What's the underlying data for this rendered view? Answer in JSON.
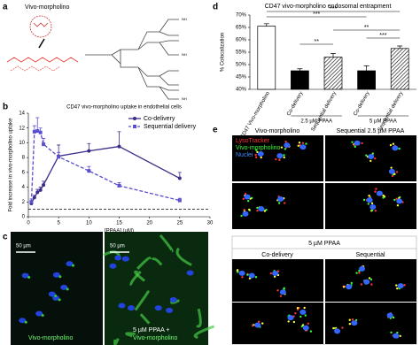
{
  "panel_labels": [
    "a",
    "b",
    "c",
    "d",
    "e"
  ],
  "panel_a": {
    "title": "Vivo-morpholino"
  },
  "chart_data": [
    {
      "type": "line",
      "title": "CD47 vivo-morpholino uptake in endothelial cells",
      "xlabel": "[PPAA] (µM)",
      "ylabel": "Fold increase in vivo-morpholino uptake",
      "x": [
        0.5,
        1,
        1.5,
        2,
        2.5,
        5,
        10,
        15,
        25
      ],
      "series": [
        {
          "name": "Co-delivery",
          "color": "#3b2a8a",
          "dash": false,
          "marker": "circle",
          "values": [
            1.8,
            2.6,
            3.3,
            3.6,
            4.3,
            8.2,
            8.9,
            9.5,
            5.2
          ],
          "errors": [
            0.3,
            0.3,
            0.4,
            0.4,
            0.5,
            1.5,
            1.0,
            2.0,
            0.8
          ]
        },
        {
          "name": "Sequential delivery",
          "color": "#5a4fcf",
          "dash": true,
          "marker": "square",
          "values": [
            2.0,
            11.5,
            11.6,
            11.4,
            9.8,
            8.1,
            6.2,
            4.2,
            2.2
          ],
          "errors": [
            0.4,
            0.8,
            1.8,
            0.6,
            0.8,
            0.6,
            0.6,
            0.4,
            0.3
          ]
        }
      ],
      "reference_line": 1,
      "xlim": [
        0,
        30
      ],
      "xticks": [
        0,
        5,
        10,
        15,
        20,
        25,
        30
      ],
      "ylim": [
        0,
        14
      ],
      "yticks": [
        0,
        2,
        4,
        6,
        8,
        10,
        12,
        14
      ],
      "legend": "top-right"
    },
    {
      "type": "bar",
      "title": "CD47 vivo-morpholino endosomal entrapment",
      "ylabel": "% Colocalization",
      "categories": [
        "CD47 Vivo-morpholino",
        "Co-delivery",
        "Sequential delivery",
        "Co-delivery",
        "Sequential delivery"
      ],
      "values": [
        65.5,
        47.5,
        53,
        47.5,
        56.5
      ],
      "errors": [
        1.0,
        0.8,
        1.5,
        2.0,
        1.0
      ],
      "bar_styles": [
        "open",
        "solid",
        "hatched",
        "solid",
        "hatched"
      ],
      "group_labels": [
        "2.5 µM PPAA",
        "5 µM PPAA"
      ],
      "significance_labels": [
        "***",
        "**",
        "**",
        "***",
        "***"
      ],
      "ylim": [
        40,
        70
      ],
      "yticks": [
        {
          "value": 40,
          "label": "40%"
        },
        {
          "value": 45,
          "label": "45%"
        },
        {
          "value": 50,
          "label": "50%"
        },
        {
          "value": 55,
          "label": "55%"
        },
        {
          "value": 60,
          "label": "60%"
        },
        {
          "value": 65,
          "label": "65%"
        },
        {
          "value": 70,
          "label": "70%"
        }
      ]
    }
  ],
  "panel_c": {
    "scale_bars": [
      "50 µm",
      "50 µm"
    ],
    "caption_left": "Vivo-morpholino",
    "caption_right": [
      "5 µM PPAA +",
      "Vivo-morpholino"
    ]
  },
  "panel_e": {
    "column_headers": [
      "Vivo-morpholino",
      "Sequential 2.5 µM PPAA"
    ],
    "legend": [
      "LysoTracker",
      "Vivo-morpholino",
      "Nuclei"
    ],
    "group_header": "5 µM PPAA",
    "subheaders": [
      "Co-delivery",
      "Sequential"
    ]
  }
}
